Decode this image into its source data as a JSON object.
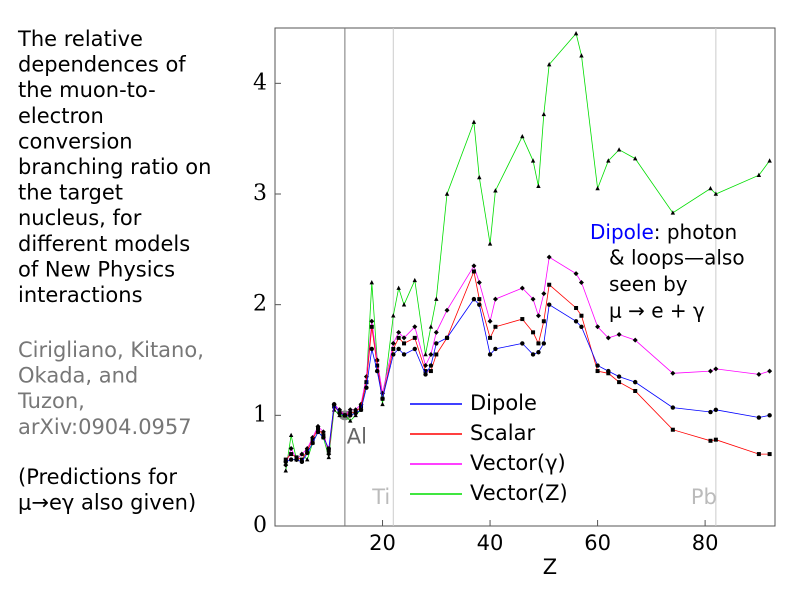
{
  "sidebar": {
    "description": [
      "The relative",
      "dependences of",
      "the muon-to-",
      "electron",
      "conversion",
      "branching ratio on",
      "the target",
      "nucleus, for",
      "different models",
      "of New Physics",
      "interactions"
    ],
    "citation": [
      "Cirigliano, Kitano,",
      "Okada, and",
      "Tuzon,",
      "arXiv:0904.0957"
    ],
    "note": [
      "(Predictions for",
      "μ→eγ also given)"
    ]
  },
  "chart_data": {
    "type": "line",
    "x_label": "Z",
    "xlim": [
      0,
      93
    ],
    "xticks": [
      20,
      40,
      60,
      80
    ],
    "ylim": [
      0,
      4.5
    ],
    "yticks": [
      0,
      1,
      2,
      3,
      4
    ],
    "x": [
      2,
      3,
      4,
      5,
      6,
      7,
      8,
      9,
      10,
      11,
      12,
      13,
      14,
      15,
      16,
      17,
      18,
      19,
      20,
      22,
      23,
      24,
      26,
      28,
      29,
      30,
      32,
      37,
      38,
      40,
      41,
      46,
      48,
      49,
      50,
      51,
      56,
      57,
      60,
      62,
      64,
      67,
      74,
      81,
      82,
      90,
      92
    ],
    "series": [
      {
        "name": "Dipole",
        "color": "#0000ff",
        "marker": "circle",
        "values": [
          0.58,
          0.6,
          0.6,
          0.58,
          0.66,
          0.75,
          0.85,
          0.8,
          0.7,
          1.1,
          1.02,
          1.0,
          1.0,
          1.02,
          1.05,
          1.25,
          1.6,
          1.4,
          1.15,
          1.55,
          1.6,
          1.55,
          1.6,
          1.37,
          1.45,
          1.65,
          1.7,
          2.05,
          2.0,
          1.55,
          1.6,
          1.65,
          1.55,
          1.57,
          1.65,
          2.0,
          1.85,
          1.8,
          1.45,
          1.4,
          1.35,
          1.3,
          1.07,
          1.03,
          1.05,
          0.98,
          1.0
        ]
      },
      {
        "name": "Scalar",
        "color": "#ff0000",
        "marker": "square",
        "values": [
          0.6,
          0.65,
          0.62,
          0.6,
          0.68,
          0.78,
          0.88,
          0.82,
          0.68,
          1.08,
          1.03,
          1.0,
          1.02,
          1.03,
          1.08,
          1.3,
          1.8,
          1.45,
          1.15,
          1.6,
          1.7,
          1.65,
          1.7,
          1.4,
          1.4,
          1.55,
          1.7,
          2.3,
          2.05,
          1.7,
          1.8,
          1.87,
          1.75,
          1.65,
          1.85,
          2.18,
          1.97,
          1.9,
          1.4,
          1.38,
          1.3,
          1.22,
          0.87,
          0.77,
          0.78,
          0.65,
          0.65
        ]
      },
      {
        "name": "Vector(γ)",
        "color": "#ff00ff",
        "marker": "diamond",
        "values": [
          0.55,
          0.7,
          0.6,
          0.65,
          0.7,
          0.8,
          0.9,
          0.85,
          0.65,
          1.1,
          1.05,
          1.0,
          1.05,
          1.05,
          1.1,
          1.35,
          1.85,
          1.5,
          1.2,
          1.65,
          1.75,
          1.7,
          1.8,
          1.45,
          1.55,
          1.75,
          1.95,
          2.35,
          2.2,
          1.85,
          2.05,
          2.15,
          2.05,
          1.9,
          2.1,
          2.43,
          2.28,
          2.2,
          1.8,
          1.7,
          1.73,
          1.68,
          1.38,
          1.4,
          1.42,
          1.37,
          1.4
        ]
      },
      {
        "name": "Vector(Z)",
        "color": "#00dd00",
        "marker": "triangle",
        "values": [
          0.5,
          0.82,
          0.6,
          0.65,
          0.6,
          0.75,
          0.85,
          0.8,
          0.62,
          1.05,
          1.0,
          1.0,
          0.95,
          1.0,
          1.05,
          1.3,
          2.2,
          1.5,
          1.1,
          1.9,
          2.15,
          2.0,
          2.22,
          1.55,
          1.8,
          2.05,
          3.0,
          3.65,
          3.15,
          2.55,
          3.03,
          3.52,
          3.3,
          3.07,
          3.72,
          4.17,
          4.45,
          4.25,
          3.05,
          3.3,
          3.4,
          3.32,
          2.83,
          3.05,
          3.0,
          3.17,
          3.3
        ]
      }
    ],
    "reference_lines": [
      {
        "x": 13,
        "label": "Al",
        "color": "#777777"
      },
      {
        "x": 22,
        "label": "Ti",
        "color": "#cccccc"
      },
      {
        "x": 82,
        "label": "Pb",
        "color": "#cccccc"
      }
    ],
    "annotation": {
      "highlight": "Dipole",
      "lines": [
        ": photon",
        "& loops—also",
        "seen by",
        "μ → e + γ"
      ]
    }
  }
}
